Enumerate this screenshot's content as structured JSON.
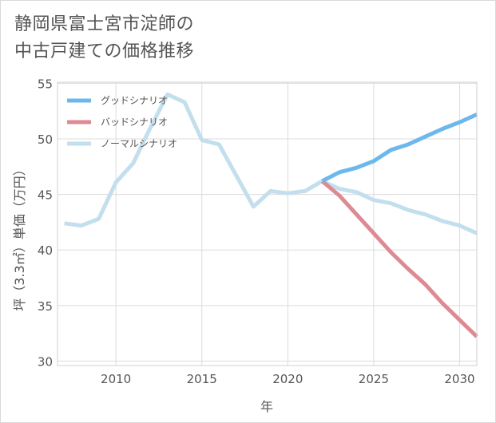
{
  "chart_data": {
    "type": "line",
    "title": "静岡県富士宮市淀師の\n中古戸建ての価格推移",
    "title_lines": [
      "静岡県富士宮市淀師の",
      "中古戸建ての価格推移"
    ],
    "xlabel": "年",
    "ylabel": "坪（3.3㎡）単価（万円）",
    "xlim": [
      2006.6,
      2031
    ],
    "ylim": [
      29.6,
      55.1
    ],
    "xticks": [
      2010,
      2015,
      2020,
      2025,
      2030
    ],
    "yticks": [
      30,
      35,
      40,
      45,
      50,
      55
    ],
    "grid": true,
    "legend_position": "top-left",
    "series": [
      {
        "name": "グッドシナリオ",
        "color": "#6cb8ec",
        "x": [
          2022,
          2023,
          2024,
          2025,
          2026,
          2027,
          2028,
          2029,
          2030,
          2031
        ],
        "y": [
          46.2,
          47.0,
          47.4,
          48.0,
          49.0,
          49.5,
          50.2,
          50.9,
          51.5,
          52.2
        ]
      },
      {
        "name": "バッドシナリオ",
        "color": "#dd8a93",
        "x": [
          2022,
          2023,
          2024,
          2025,
          2026,
          2027,
          2028,
          2029,
          2030,
          2031
        ],
        "y": [
          46.2,
          44.9,
          43.2,
          41.5,
          39.8,
          38.3,
          36.9,
          35.2,
          33.7,
          32.2
        ]
      },
      {
        "name": "ノーマルシナリオ",
        "color": "#c3dfed",
        "x": [
          2007,
          2008,
          2009,
          2010,
          2011,
          2012,
          2013,
          2014,
          2015,
          2016,
          2017,
          2018,
          2019,
          2020,
          2021,
          2022,
          2023,
          2024,
          2025,
          2026,
          2027,
          2028,
          2029,
          2030,
          2031
        ],
        "y": [
          42.4,
          42.2,
          42.8,
          46.1,
          47.8,
          51.0,
          54.0,
          53.3,
          49.9,
          49.5,
          46.7,
          43.9,
          45.3,
          45.1,
          45.3,
          46.2,
          45.5,
          45.2,
          44.5,
          44.2,
          43.6,
          43.2,
          42.6,
          42.2,
          41.5
        ]
      }
    ]
  }
}
